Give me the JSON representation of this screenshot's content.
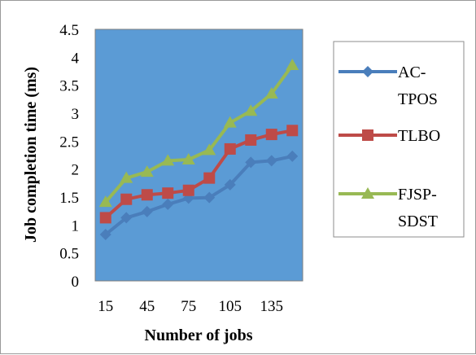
{
  "chart_data": {
    "type": "line",
    "xlabel": "Number of jobs",
    "ylabel": "Job completion time (ms)",
    "x": [
      15,
      30,
      45,
      60,
      75,
      90,
      105,
      120,
      135,
      150
    ],
    "x_tick_labels": [
      "15",
      "45",
      "75",
      "105",
      "135"
    ],
    "x_tick_values": [
      15,
      45,
      75,
      105,
      135
    ],
    "y_ticks": [
      "0",
      "0.5",
      "1",
      "1.5",
      "2",
      "2.5",
      "3",
      "3.5",
      "4",
      "4.5"
    ],
    "y_tick_values": [
      0,
      0.5,
      1,
      1.5,
      2,
      2.5,
      3,
      3.5,
      4,
      4.5
    ],
    "ylim": [
      0,
      4.5
    ],
    "grid": false,
    "legend_position": "right",
    "plot_background": "#5b9bd5",
    "series": [
      {
        "name_lines": [
          "AC-",
          "TPOS"
        ],
        "color": "#4a7ebb",
        "marker": "diamond",
        "values": [
          0.83,
          1.13,
          1.24,
          1.37,
          1.48,
          1.49,
          1.72,
          2.12,
          2.15,
          2.23
        ]
      },
      {
        "name_lines": [
          "TLBO"
        ],
        "color": "#be4b48",
        "marker": "square",
        "values": [
          1.13,
          1.46,
          1.54,
          1.57,
          1.62,
          1.84,
          2.36,
          2.52,
          2.62,
          2.69
        ]
      },
      {
        "name_lines": [
          "FJSP-",
          "SDST"
        ],
        "color": "#98b954",
        "marker": "triangle",
        "values": [
          1.41,
          1.84,
          1.95,
          2.15,
          2.17,
          2.34,
          2.83,
          3.04,
          3.35,
          3.86
        ]
      }
    ]
  }
}
